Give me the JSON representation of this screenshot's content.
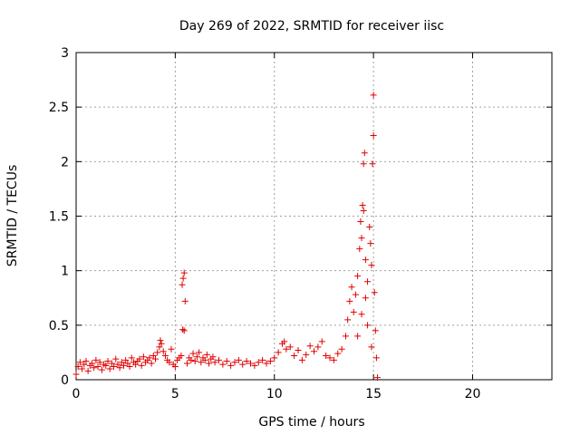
{
  "chart_data": {
    "type": "scatter",
    "title": "Day 269 of 2022, SRMTID for receiver iisc",
    "xlabel": "GPS time / hours",
    "ylabel": "SRMTID / TECUs",
    "xlim": [
      0,
      24
    ],
    "ylim": [
      0,
      3
    ],
    "xticks": [
      0,
      5,
      10,
      15,
      20
    ],
    "yticks": [
      0,
      0.5,
      1,
      1.5,
      2,
      2.5,
      3
    ],
    "xtick_labels": [
      "0",
      "5",
      "10",
      "15",
      "20"
    ],
    "ytick_labels": [
      "0",
      "0.5",
      "1",
      "1.5",
      "2",
      "2.5",
      "3"
    ],
    "grid": true,
    "marker": "+",
    "color": "#e00000",
    "series": [
      {
        "name": "SRMTID",
        "points": [
          [
            0.0,
            0.05
          ],
          [
            0.1,
            0.12
          ],
          [
            0.2,
            0.16
          ],
          [
            0.3,
            0.1
          ],
          [
            0.4,
            0.14
          ],
          [
            0.5,
            0.17
          ],
          [
            0.6,
            0.08
          ],
          [
            0.7,
            0.13
          ],
          [
            0.8,
            0.15
          ],
          [
            0.9,
            0.11
          ],
          [
            1.0,
            0.18
          ],
          [
            1.1,
            0.12
          ],
          [
            1.2,
            0.16
          ],
          [
            1.3,
            0.09
          ],
          [
            1.4,
            0.14
          ],
          [
            1.5,
            0.13
          ],
          [
            1.6,
            0.17
          ],
          [
            1.7,
            0.1
          ],
          [
            1.8,
            0.15
          ],
          [
            1.9,
            0.12
          ],
          [
            2.0,
            0.19
          ],
          [
            2.1,
            0.14
          ],
          [
            2.2,
            0.11
          ],
          [
            2.3,
            0.16
          ],
          [
            2.4,
            0.13
          ],
          [
            2.5,
            0.18
          ],
          [
            2.6,
            0.15
          ],
          [
            2.7,
            0.12
          ],
          [
            2.8,
            0.2
          ],
          [
            2.9,
            0.16
          ],
          [
            3.0,
            0.14
          ],
          [
            3.1,
            0.17
          ],
          [
            3.2,
            0.19
          ],
          [
            3.3,
            0.13
          ],
          [
            3.4,
            0.21
          ],
          [
            3.5,
            0.16
          ],
          [
            3.6,
            0.18
          ],
          [
            3.7,
            0.2
          ],
          [
            3.8,
            0.15
          ],
          [
            3.9,
            0.22
          ],
          [
            4.0,
            0.19
          ],
          [
            4.1,
            0.25
          ],
          [
            4.2,
            0.3
          ],
          [
            4.25,
            0.36
          ],
          [
            4.3,
            0.33
          ],
          [
            4.4,
            0.26
          ],
          [
            4.5,
            0.22
          ],
          [
            4.6,
            0.18
          ],
          [
            4.7,
            0.16
          ],
          [
            4.8,
            0.28
          ],
          [
            4.9,
            0.14
          ],
          [
            5.0,
            0.12
          ],
          [
            5.1,
            0.18
          ],
          [
            5.2,
            0.2
          ],
          [
            5.3,
            0.22
          ],
          [
            5.35,
            0.87
          ],
          [
            5.4,
            0.93
          ],
          [
            5.45,
            0.98
          ],
          [
            5.5,
            0.72
          ],
          [
            5.38,
            0.46
          ],
          [
            5.45,
            0.45
          ],
          [
            5.6,
            0.15
          ],
          [
            5.7,
            0.2
          ],
          [
            5.8,
            0.18
          ],
          [
            5.9,
            0.24
          ],
          [
            6.0,
            0.17
          ],
          [
            6.1,
            0.21
          ],
          [
            6.2,
            0.25
          ],
          [
            6.3,
            0.16
          ],
          [
            6.4,
            0.2
          ],
          [
            6.5,
            0.18
          ],
          [
            6.6,
            0.23
          ],
          [
            6.7,
            0.15
          ],
          [
            6.8,
            0.19
          ],
          [
            6.9,
            0.21
          ],
          [
            7.0,
            0.16
          ],
          [
            7.2,
            0.18
          ],
          [
            7.4,
            0.14
          ],
          [
            7.6,
            0.17
          ],
          [
            7.8,
            0.13
          ],
          [
            8.0,
            0.16
          ],
          [
            8.2,
            0.18
          ],
          [
            8.4,
            0.14
          ],
          [
            8.6,
            0.17
          ],
          [
            8.8,
            0.15
          ],
          [
            9.0,
            0.13
          ],
          [
            9.2,
            0.16
          ],
          [
            9.4,
            0.18
          ],
          [
            9.6,
            0.15
          ],
          [
            9.8,
            0.17
          ],
          [
            10.0,
            0.2
          ],
          [
            10.2,
            0.25
          ],
          [
            10.4,
            0.33
          ],
          [
            10.5,
            0.35
          ],
          [
            10.6,
            0.28
          ],
          [
            10.8,
            0.3
          ],
          [
            11.0,
            0.22
          ],
          [
            11.2,
            0.27
          ],
          [
            11.4,
            0.18
          ],
          [
            11.6,
            0.23
          ],
          [
            11.8,
            0.31
          ],
          [
            12.0,
            0.26
          ],
          [
            12.2,
            0.3
          ],
          [
            12.4,
            0.35
          ],
          [
            12.6,
            0.22
          ],
          [
            12.8,
            0.2
          ],
          [
            13.0,
            0.18
          ],
          [
            13.2,
            0.24
          ],
          [
            13.4,
            0.28
          ],
          [
            13.6,
            0.4
          ],
          [
            13.7,
            0.55
          ],
          [
            13.8,
            0.72
          ],
          [
            13.9,
            0.85
          ],
          [
            14.0,
            0.62
          ],
          [
            14.1,
            0.78
          ],
          [
            14.2,
            0.95
          ],
          [
            14.3,
            1.2
          ],
          [
            14.35,
            1.45
          ],
          [
            14.4,
            1.3
          ],
          [
            14.45,
            1.6
          ],
          [
            14.5,
            1.55
          ],
          [
            14.5,
            1.98
          ],
          [
            14.55,
            2.08
          ],
          [
            14.6,
            1.1
          ],
          [
            14.7,
            0.9
          ],
          [
            14.8,
            1.4
          ],
          [
            14.85,
            1.25
          ],
          [
            14.9,
            1.05
          ],
          [
            14.95,
            1.98
          ],
          [
            15.0,
            2.61
          ],
          [
            15.0,
            2.24
          ],
          [
            15.05,
            0.8
          ],
          [
            15.1,
            0.45
          ],
          [
            15.15,
            0.2
          ],
          [
            15.2,
            0.02
          ],
          [
            14.2,
            0.4
          ],
          [
            14.4,
            0.6
          ],
          [
            14.6,
            0.75
          ],
          [
            14.7,
            0.5
          ],
          [
            14.9,
            0.3
          ]
        ]
      }
    ]
  }
}
